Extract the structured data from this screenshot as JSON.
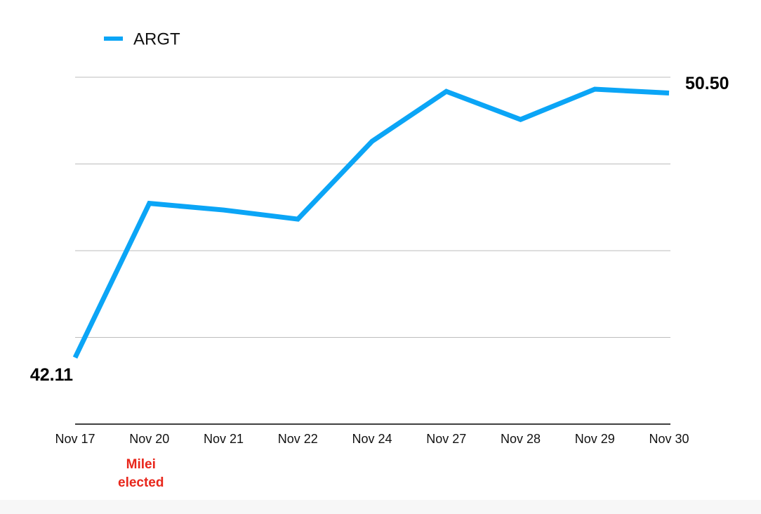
{
  "chart_data": {
    "type": "line",
    "categories": [
      "Nov 17",
      "Nov 20",
      "Nov 21",
      "Nov 22",
      "Nov 24",
      "Nov 27",
      "Nov 28",
      "Nov 29",
      "Nov 30"
    ],
    "series": [
      {
        "name": "ARGT",
        "color": "#0ba5f6",
        "values": [
          42.11,
          47.0,
          46.79,
          46.5,
          48.97,
          50.55,
          49.66,
          50.62,
          50.5
        ],
        "value_labels": [
          "42.11",
          null,
          null,
          null,
          null,
          null,
          null,
          null,
          "50.50"
        ]
      }
    ],
    "ylim": [
      40,
      51
    ],
    "yticks": [
      40,
      42.75,
      45.5,
      48.25,
      51
    ],
    "grid": true,
    "legend": "top-left",
    "annotations": [
      {
        "category": "Nov 20",
        "lines": [
          "Milei",
          "elected"
        ],
        "color": "#e8261b"
      }
    ]
  }
}
